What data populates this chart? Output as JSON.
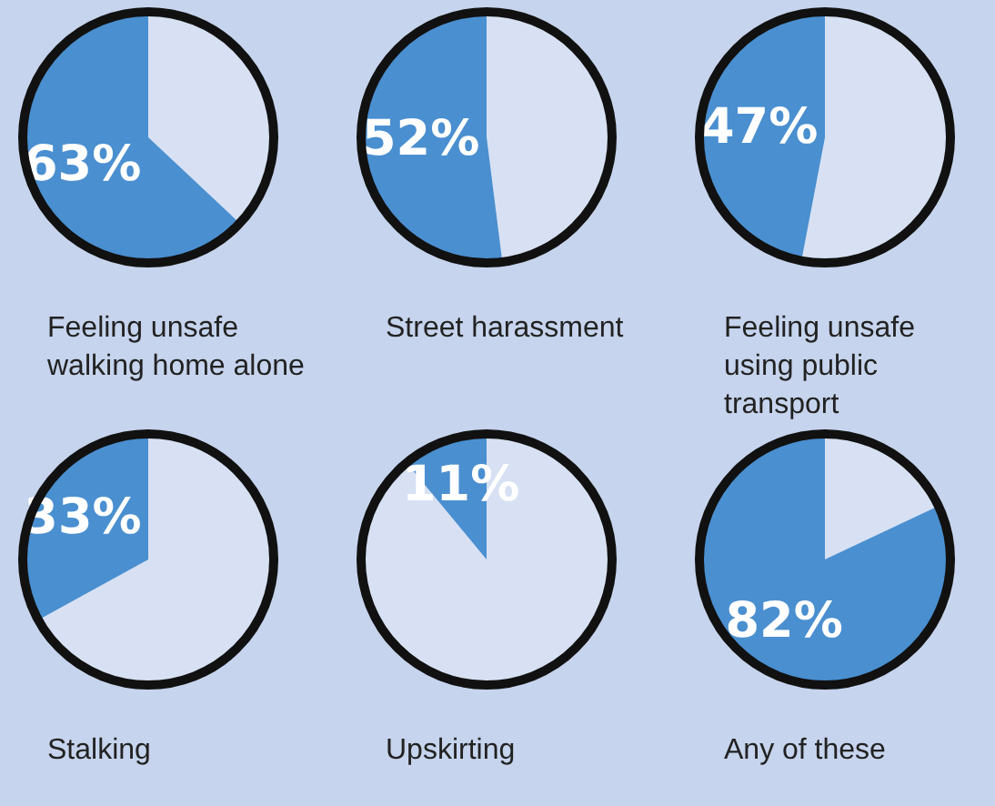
{
  "chart_data": [
    {
      "type": "pie",
      "title": "Feeling unsafe walking home alone",
      "categories": [
        null,
        null
      ],
      "values": [
        37,
        63
      ],
      "colors": [
        "#d7e1f3",
        "#4a8fd0"
      ],
      "value_labels": [
        null,
        "63%"
      ],
      "legend": false
    },
    {
      "type": "pie",
      "title": "Street harassment",
      "categories": [
        null,
        null
      ],
      "values": [
        48,
        52
      ],
      "colors": [
        "#d7e1f3",
        "#4a8fd0"
      ],
      "value_labels": [
        null,
        "52%"
      ],
      "legend": false
    },
    {
      "type": "pie",
      "title": "Feeling unsafe using public transport",
      "categories": [
        null,
        null
      ],
      "values": [
        53,
        47
      ],
      "colors": [
        "#d7e1f3",
        "#4a8fd0"
      ],
      "value_labels": [
        null,
        "47%"
      ],
      "legend": false
    },
    {
      "type": "pie",
      "title": "Stalking",
      "categories": [
        null,
        null
      ],
      "values": [
        67,
        33
      ],
      "colors": [
        "#d7e1f3",
        "#4a8fd0"
      ],
      "value_labels": [
        null,
        "33%"
      ],
      "legend": false
    },
    {
      "type": "pie",
      "title": "Upskirting",
      "categories": [
        null,
        null
      ],
      "values": [
        89,
        11
      ],
      "colors": [
        "#d7e1f3",
        "#4a8fd0"
      ],
      "value_labels": [
        null,
        "11%"
      ],
      "legend": false
    },
    {
      "type": "pie",
      "title": "Any of these",
      "categories": [
        null,
        null
      ],
      "values": [
        18,
        82
      ],
      "colors": [
        "#d7e1f3",
        "#4a8fd0"
      ],
      "value_labels": [
        null,
        "82%"
      ],
      "legend": false
    }
  ]
}
